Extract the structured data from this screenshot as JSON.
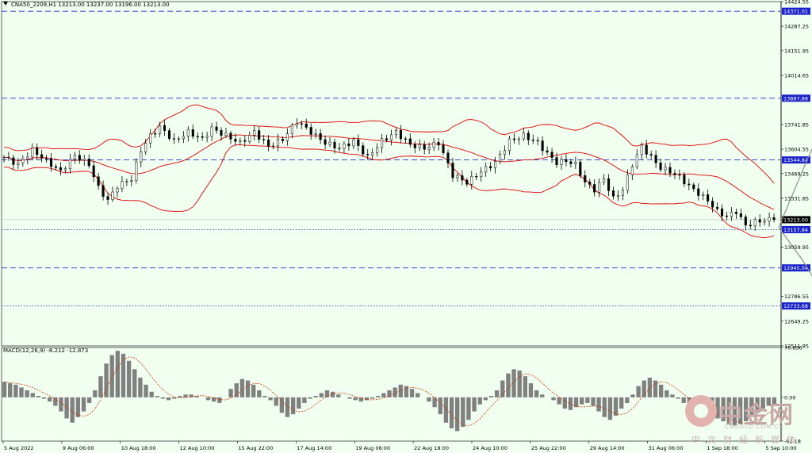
{
  "symbol_line": "CNA50_2209,H1  13213.00 13237.00 13196.00 13213.00",
  "macd_label": "MACD(12,26,9) -8.212 -12.873",
  "logo": {
    "cn": "中金网",
    "en": "CNGOLD.COM.CN",
    "sub": "中文财经新媒体"
  },
  "colors": {
    "background": "#f0fff0",
    "bollinger": "#e00000",
    "candle": "#000000",
    "hline_dash": "#2233cc",
    "hline_dot": "#3344cc",
    "label_bg": "#1a22cc",
    "arrow": "#909090",
    "macd_bars": "#808080",
    "macd_signal": "#cc3300"
  },
  "chart_data": [
    {
      "type": "candlestick",
      "ylim": [
        12511.85,
        14424.55
      ],
      "y_ticks": [
        "14424.55",
        "14287.25",
        "14151.95",
        "14014.65",
        "13741.85",
        "13604.55",
        "13469.25",
        "13331.85",
        "13059.95",
        "12786.55",
        "12649.25",
        "12511.85"
      ],
      "x_ticks": [
        "5 Aug 2022",
        "9 Aug 06:00",
        "10 Aug 18:00",
        "12 Aug 10:00",
        "15 Aug 22:00",
        "17 Aug 14:00",
        "19 Aug 06:00",
        "22 Aug 18:00",
        "24 Aug 10:00",
        "25 Aug 22:00",
        "29 Aug 14:00",
        "31 Aug 06:00",
        "1 Sep 18:00",
        "5 Sep 10:00"
      ],
      "current_price": "13213.00",
      "levels": [
        {
          "value": "14371.01",
          "style": "dash"
        },
        {
          "value": "13887.88",
          "style": "dash"
        },
        {
          "value": "13544.84",
          "style": "dash"
        },
        {
          "value": "13157.84",
          "style": "dot"
        },
        {
          "value": "12945.04",
          "style": "dash"
        },
        {
          "value": "12733.68",
          "style": "dot"
        }
      ],
      "close_path": [
        [
          0,
          13560
        ],
        [
          3,
          13520
        ],
        [
          6,
          13600
        ],
        [
          9,
          13540
        ],
        [
          12,
          13480
        ],
        [
          15,
          13570
        ],
        [
          18,
          13520
        ],
        [
          20,
          13390
        ],
        [
          22,
          13320
        ],
        [
          24,
          13400
        ],
        [
          27,
          13440
        ],
        [
          29,
          13600
        ],
        [
          31,
          13680
        ],
        [
          33,
          13730
        ],
        [
          36,
          13650
        ],
        [
          39,
          13700
        ],
        [
          42,
          13660
        ],
        [
          44,
          13720
        ],
        [
          47,
          13680
        ],
        [
          50,
          13640
        ],
        [
          53,
          13700
        ],
        [
          56,
          13620
        ],
        [
          59,
          13660
        ],
        [
          62,
          13760
        ],
        [
          65,
          13700
        ],
        [
          68,
          13640
        ],
        [
          71,
          13610
        ],
        [
          74,
          13650
        ],
        [
          77,
          13560
        ],
        [
          80,
          13650
        ],
        [
          83,
          13700
        ],
        [
          86,
          13630
        ],
        [
          89,
          13610
        ],
        [
          92,
          13640
        ],
        [
          95,
          13460
        ],
        [
          98,
          13420
        ],
        [
          101,
          13480
        ],
        [
          104,
          13530
        ],
        [
          107,
          13650
        ],
        [
          110,
          13680
        ],
        [
          113,
          13640
        ],
        [
          115,
          13580
        ],
        [
          117,
          13530
        ],
        [
          119,
          13540
        ],
        [
          121,
          13520
        ],
        [
          123,
          13420
        ],
        [
          125,
          13380
        ],
        [
          127,
          13440
        ],
        [
          129,
          13330
        ],
        [
          131,
          13380
        ],
        [
          133,
          13520
        ],
        [
          135,
          13620
        ],
        [
          137,
          13560
        ],
        [
          139,
          13500
        ],
        [
          141,
          13480
        ],
        [
          143,
          13450
        ],
        [
          145,
          13400
        ],
        [
          147,
          13360
        ],
        [
          149,
          13320
        ],
        [
          151,
          13260
        ],
        [
          153,
          13230
        ],
        [
          155,
          13260
        ],
        [
          157,
          13180
        ],
        [
          159,
          13200
        ],
        [
          161,
          13210
        ],
        [
          163,
          13213
        ]
      ],
      "forecast_arrows": [
        {
          "from": [
            164,
            13170
          ],
          "via": [
            170,
            13544.84
          ],
          "to": [
            176,
            13887.88
          ]
        },
        {
          "from": [
            164,
            13170
          ],
          "via": [
            169,
            12990
          ],
          "to": [
            175,
            12733.68
          ]
        }
      ]
    },
    {
      "type": "bar",
      "name": "MACD",
      "ylim": [
        -62.18,
        70.836
      ],
      "y_ticks": [
        "70.836",
        "0.00",
        "-62.18"
      ],
      "histogram": [
        22,
        20,
        18,
        14,
        10,
        6,
        2,
        -2,
        -6,
        -12,
        -20,
        -30,
        -36,
        -28,
        -20,
        -8,
        10,
        30,
        48,
        60,
        66,
        62,
        52,
        40,
        28,
        18,
        8,
        2,
        -2,
        -4,
        -2,
        2,
        4,
        4,
        2,
        0,
        -4,
        -6,
        -8,
        0,
        12,
        20,
        26,
        24,
        18,
        10,
        2,
        -4,
        -12,
        -22,
        -28,
        -24,
        -16,
        -8,
        -2,
        2,
        6,
        10,
        8,
        4,
        0,
        -2,
        -4,
        -6,
        -4,
        -2,
        2,
        6,
        10,
        14,
        18,
        16,
        12,
        6,
        0,
        -6,
        -14,
        -24,
        -36,
        -44,
        -48,
        -42,
        -32,
        -20,
        -10,
        -4,
        2,
        10,
        24,
        34,
        40,
        38,
        30,
        20,
        10,
        4,
        0,
        -4,
        -10,
        -16,
        -18,
        -14,
        -10,
        -8,
        -12,
        -20,
        -28,
        -32,
        -26,
        -16,
        -8,
        4,
        16,
        24,
        28,
        24,
        18,
        10,
        4,
        -2,
        -8,
        -14,
        -18,
        -20,
        -22,
        -26,
        -30,
        -34,
        -38,
        -40,
        -38,
        -34,
        -28,
        -22,
        -16,
        -12,
        -10
      ]
    }
  ]
}
